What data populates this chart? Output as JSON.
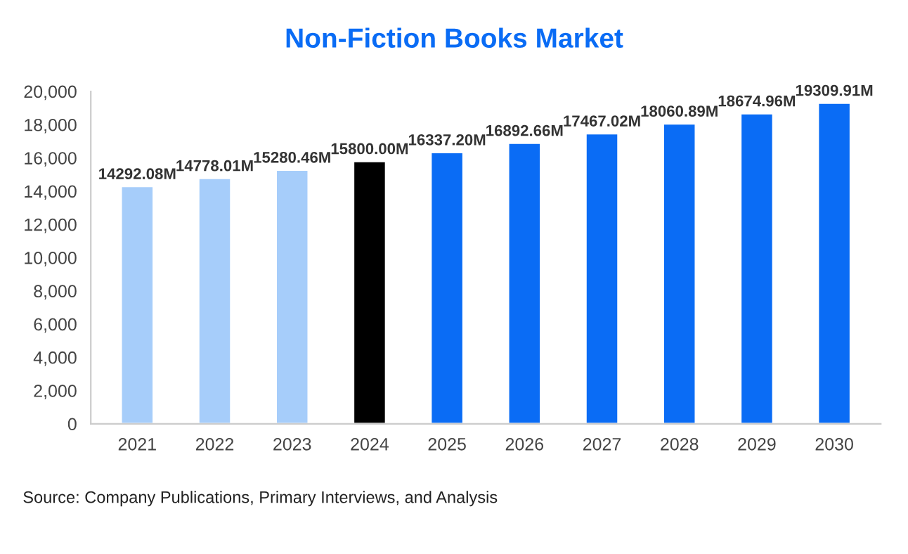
{
  "chart_data": {
    "type": "bar",
    "title": "Non-Fiction Books Market",
    "categories": [
      "2021",
      "2022",
      "2023",
      "2024",
      "2025",
      "2026",
      "2027",
      "2028",
      "2029",
      "2030"
    ],
    "values": [
      14292.08,
      14778.01,
      15280.46,
      15800.0,
      16337.2,
      16892.66,
      17467.02,
      18060.89,
      18674.96,
      19309.91
    ],
    "colors": [
      "#a6cdfa",
      "#a6cdfa",
      "#a6cdfa",
      "#000000",
      "#0a6cf5",
      "#0a6cf5",
      "#0a6cf5",
      "#0a6cf5",
      "#0a6cf5",
      "#0a6cf5"
    ],
    "value_labels": [
      "14292.08M",
      "14778.01M",
      "15280.46M",
      "15800.00M",
      "16337.20M",
      "16892.66M",
      "17467.02M",
      "18060.89M",
      "18674.96M",
      "19309.91M"
    ],
    "ylim": [
      0,
      20000
    ],
    "yticks": [
      0,
      {
        "value": 2000,
        "label": "2,000"
      },
      {
        "value": 4000,
        "label": "4,000"
      },
      {
        "value": 6000,
        "label": "6,000"
      },
      {
        "value": 8000,
        "label": "8,000"
      },
      {
        "value": 10000,
        "label": "10,000"
      },
      {
        "value": 12000,
        "label": "12,000"
      },
      {
        "value": 14000,
        "label": "14,000"
      },
      {
        "value": 16000,
        "label": "16,000"
      },
      {
        "value": 18000,
        "label": "18,000"
      },
      {
        "value": 20000,
        "label": "20,000"
      }
    ],
    "grid": false,
    "legend": false,
    "annotations": [
      "Source: Company Publications, Primary Interviews, and Analysis"
    ]
  }
}
